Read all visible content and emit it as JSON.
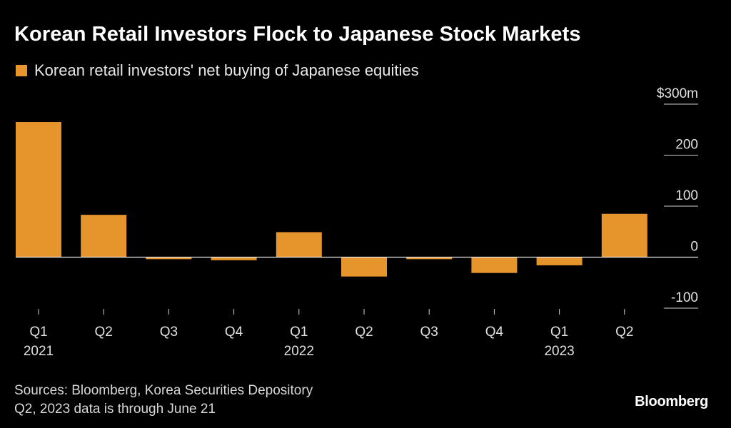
{
  "colors": {
    "background": "#000000",
    "bar": "#e6952c",
    "axis": "#cfcfcf",
    "text": "#ffffff"
  },
  "chart_data": {
    "type": "bar",
    "title": "Korean Retail Investors Flock to Japanese Stock Markets",
    "legend": "Korean retail investors' net buying of Japanese equities",
    "categories": [
      "Q1 2021",
      "Q2 2021",
      "Q3 2021",
      "Q4 2021",
      "Q1 2022",
      "Q2 2022",
      "Q3 2022",
      "Q4 2022",
      "Q1 2023",
      "Q2 2023"
    ],
    "tick_labels": [
      {
        "quarter": "Q1",
        "year": "2021"
      },
      {
        "quarter": "Q2",
        "year": ""
      },
      {
        "quarter": "Q3",
        "year": ""
      },
      {
        "quarter": "Q4",
        "year": ""
      },
      {
        "quarter": "Q1",
        "year": "2022"
      },
      {
        "quarter": "Q2",
        "year": ""
      },
      {
        "quarter": "Q3",
        "year": ""
      },
      {
        "quarter": "Q4",
        "year": ""
      },
      {
        "quarter": "Q1",
        "year": "2023"
      },
      {
        "quarter": "Q2",
        "year": ""
      }
    ],
    "series": [
      {
        "name": "Korean retail investors' net buying of Japanese equities",
        "values": [
          265,
          83,
          -4,
          -6,
          49,
          -38,
          -4,
          -31,
          -16,
          85
        ]
      }
    ],
    "yticks": [
      {
        "value": 300,
        "label": "$300m"
      },
      {
        "value": 200,
        "label": "200"
      },
      {
        "value": 100,
        "label": "100"
      },
      {
        "value": 0,
        "label": "0"
      },
      {
        "value": -100,
        "label": "-100"
      }
    ],
    "ylim": [
      -100,
      300
    ],
    "xlabel": "",
    "ylabel": ""
  },
  "footer": {
    "sources": "Sources: Bloomberg, Korea Securities Depository",
    "note": "Q2, 2023 data is through June 21"
  },
  "brand": "Bloomberg"
}
